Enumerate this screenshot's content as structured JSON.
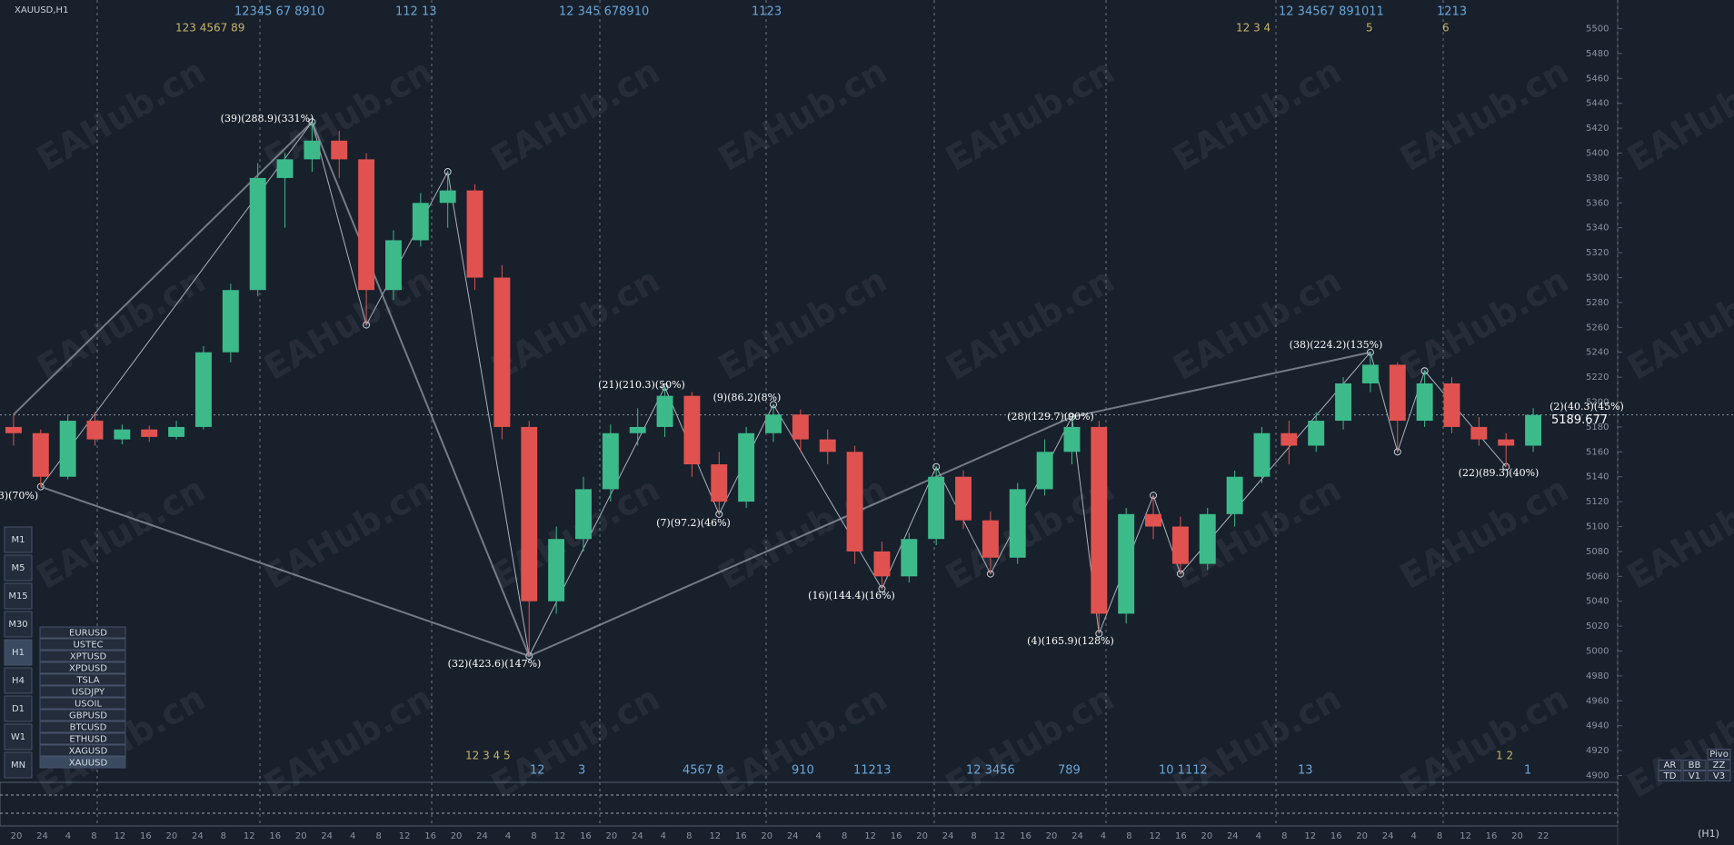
{
  "header": {
    "title": "XAUUSD,H1",
    "watermark": "EAHub.cn",
    "timeframe_label": "(H1)",
    "current_price": "5189.677"
  },
  "chart_data": {
    "type": "candlestick",
    "ylim": [
      4896,
      5523
    ],
    "yticks": [
      4900,
      4920,
      4940,
      4960,
      4980,
      5000,
      5020,
      5040,
      5060,
      5080,
      5100,
      5120,
      5140,
      5160,
      5180,
      5200,
      5220,
      5240,
      5260,
      5280,
      5300,
      5320,
      5340,
      5360,
      5380,
      5400,
      5420,
      5440,
      5460,
      5480,
      5500
    ],
    "up_color": "#3dba8a",
    "down_color": "#e0524f",
    "grid": true,
    "ohlc": [
      [
        5180,
        5190,
        5165,
        5175
      ],
      [
        5175,
        5178,
        5132,
        5140
      ],
      [
        5140,
        5190,
        5138,
        5185
      ],
      [
        5185,
        5192,
        5165,
        5170
      ],
      [
        5170,
        5182,
        5166,
        5178
      ],
      [
        5178,
        5181,
        5168,
        5172
      ],
      [
        5172,
        5185,
        5170,
        5180
      ],
      [
        5180,
        5245,
        5178,
        5240
      ],
      [
        5240,
        5295,
        5232,
        5290
      ],
      [
        5290,
        5392,
        5285,
        5380
      ],
      [
        5380,
        5400,
        5340,
        5395
      ],
      [
        5395,
        5425,
        5385,
        5410
      ],
      [
        5410,
        5418,
        5380,
        5395
      ],
      [
        5395,
        5400,
        5262,
        5290
      ],
      [
        5290,
        5338,
        5282,
        5330
      ],
      [
        5330,
        5368,
        5325,
        5360
      ],
      [
        5360,
        5385,
        5340,
        5370
      ],
      [
        5370,
        5375,
        5290,
        5300
      ],
      [
        5300,
        5310,
        5170,
        5180
      ],
      [
        5180,
        5185,
        4996,
        5040
      ],
      [
        5040,
        5100,
        5030,
        5090
      ],
      [
        5090,
        5140,
        5080,
        5130
      ],
      [
        5130,
        5182,
        5120,
        5175
      ],
      [
        5175,
        5195,
        5165,
        5180
      ],
      [
        5180,
        5212,
        5172,
        5205
      ],
      [
        5205,
        5208,
        5140,
        5150
      ],
      [
        5150,
        5160,
        5110,
        5120
      ],
      [
        5120,
        5180,
        5115,
        5175
      ],
      [
        5175,
        5198,
        5168,
        5190
      ],
      [
        5190,
        5194,
        5160,
        5170
      ],
      [
        5170,
        5178,
        5150,
        5160
      ],
      [
        5160,
        5165,
        5070,
        5080
      ],
      [
        5080,
        5088,
        5050,
        5060
      ],
      [
        5060,
        5095,
        5055,
        5090
      ],
      [
        5090,
        5148,
        5085,
        5140
      ],
      [
        5140,
        5145,
        5098,
        5105
      ],
      [
        5105,
        5112,
        5062,
        5075
      ],
      [
        5075,
        5135,
        5070,
        5130
      ],
      [
        5130,
        5170,
        5125,
        5160
      ],
      [
        5160,
        5188,
        5150,
        5180
      ],
      [
        5180,
        5185,
        5014,
        5030
      ],
      [
        5030,
        5115,
        5022,
        5110
      ],
      [
        5110,
        5125,
        5090,
        5100
      ],
      [
        5100,
        5108,
        5062,
        5070
      ],
      [
        5070,
        5115,
        5065,
        5110
      ],
      [
        5110,
        5145,
        5100,
        5140
      ],
      [
        5140,
        5180,
        5135,
        5175
      ],
      [
        5175,
        5185,
        5150,
        5165
      ],
      [
        5165,
        5192,
        5160,
        5185
      ],
      [
        5185,
        5220,
        5178,
        5215
      ],
      [
        5215,
        5240,
        5208,
        5230
      ],
      [
        5230,
        5232,
        5160,
        5185
      ],
      [
        5185,
        5225,
        5180,
        5215
      ],
      [
        5215,
        5220,
        5175,
        5180
      ],
      [
        5180,
        5188,
        5165,
        5170
      ],
      [
        5170,
        5175,
        5148,
        5165
      ],
      [
        5165,
        5195,
        5160,
        5189.677
      ]
    ],
    "x_labels": [
      "20",
      "24",
      "4",
      "8",
      "12",
      "16",
      "20",
      "24",
      "8",
      "12",
      "16",
      "20",
      "24",
      "4",
      "8",
      "12",
      "16",
      "20",
      "24",
      "4",
      "8",
      "12",
      "16",
      "20",
      "24",
      "4",
      "8",
      "12",
      "16",
      "20",
      "24",
      "4",
      "8",
      "12",
      "16",
      "20",
      "24",
      "8",
      "12",
      "16",
      "20",
      "24",
      "4",
      "8",
      "12",
      "16",
      "20",
      "24",
      "4",
      "8",
      "12",
      "16",
      "20",
      "24",
      "4",
      "8",
      "12",
      "16",
      "20",
      "22"
    ],
    "annotations": [
      "(39)(288.9)(331%)",
      "(21)(210.3)(50%)",
      "(9)(86.2)(8%)",
      "(7)(97.2)(46%)",
      "(16)(144.4)(16%)",
      "(28)(129.7)(90%)",
      "(4)(165.9)(128%)",
      "(32)(423.6)(147%)",
      "(38)(224.2)(135%)",
      "(2)(40.3)(45%)",
      "(22)(89.3)(40%)",
      "3)(70%)"
    ],
    "top_counts": [
      "12345   67  8910",
      "112  13",
      "12    345    678910",
      "1123",
      "12   34567   891011",
      "1213"
    ],
    "top_counts_2": [
      "123      4567      89",
      "12   3    4",
      "5",
      "6"
    ],
    "bottom_counts": [
      "12   3   4   5",
      "12",
      "3",
      "4567   8",
      "910",
      "11213",
      "12  3456",
      "789",
      "10  1112",
      "13",
      "1    2",
      "1"
    ]
  },
  "timeframes": [
    "M1",
    "M5",
    "M15",
    "M30",
    "H1",
    "H4",
    "D1",
    "W1",
    "MN"
  ],
  "symbols": [
    "EURUSD",
    "USTEC",
    "XPTUSD",
    "XPDUSD",
    "TSLA",
    "USDJPY",
    "USOIL",
    "GBPUSD",
    "BTCUSD",
    "ETHUSD",
    "XAGUSD",
    "XAUUSD"
  ],
  "tools": [
    "AR",
    "BB",
    "ZZ",
    "TD",
    "V1",
    "V3",
    "Pivo"
  ]
}
